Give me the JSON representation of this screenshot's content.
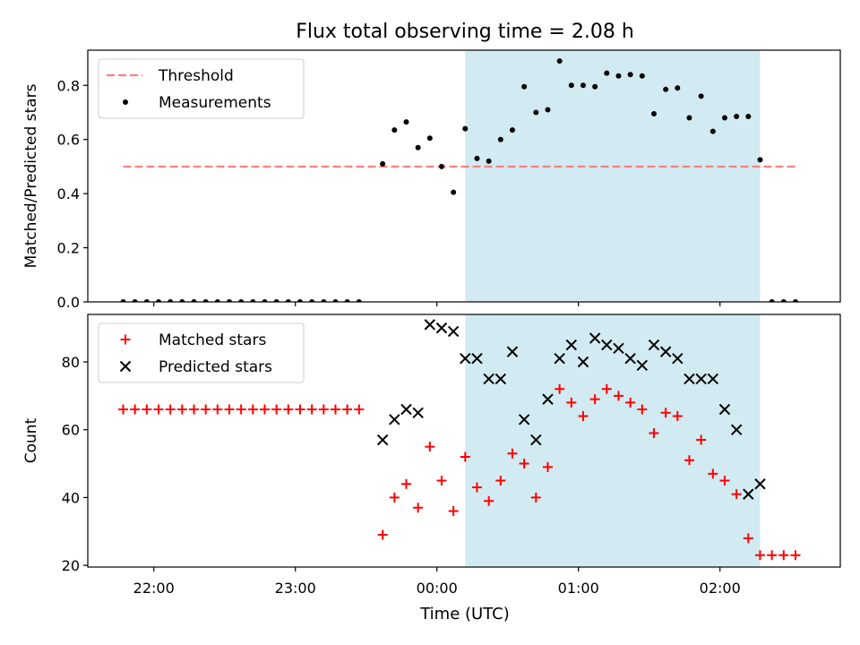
{
  "title": "Flux total observing time = 2.08 h",
  "xlabel": "Time (UTC)",
  "chart_data": [
    {
      "type": "scatter",
      "panel": "top",
      "ylabel": "Matched/Predicted stars",
      "xlim": [
        "21:32",
        "02:51"
      ],
      "ylim": [
        0,
        0.93
      ],
      "yticks": [
        0.0,
        0.2,
        0.4,
        0.6,
        0.8
      ],
      "ytick_labels": [
        "0.0",
        "0.2",
        "0.4",
        "0.6",
        "0.8"
      ],
      "shaded_interval": [
        "00:12",
        "02:17"
      ],
      "legend": {
        "placement": "upper-left",
        "entries": [
          "Threshold",
          "Measurements"
        ]
      },
      "threshold": {
        "name": "Threshold",
        "value": 0.5,
        "x_start": "21:47",
        "x_end": "02:32",
        "style": "dashed",
        "color": "#ff7f7f"
      },
      "series": [
        {
          "name": "Measurements",
          "marker": "dot",
          "color": "#000000",
          "points": [
            [
              "21:47",
              0.0
            ],
            [
              "21:52",
              0.0
            ],
            [
              "21:57",
              0.0
            ],
            [
              "22:02",
              0.0
            ],
            [
              "22:07",
              0.0
            ],
            [
              "22:12",
              0.0
            ],
            [
              "22:17",
              0.0
            ],
            [
              "22:22",
              0.0
            ],
            [
              "22:27",
              0.0
            ],
            [
              "22:32",
              0.0
            ],
            [
              "22:37",
              0.0
            ],
            [
              "22:42",
              0.0
            ],
            [
              "22:47",
              0.0
            ],
            [
              "22:52",
              0.0
            ],
            [
              "22:57",
              0.0
            ],
            [
              "23:02",
              0.0
            ],
            [
              "23:07",
              0.0
            ],
            [
              "23:12",
              0.0
            ],
            [
              "23:17",
              0.0
            ],
            [
              "23:22",
              0.0
            ],
            [
              "23:27",
              0.0
            ],
            [
              "23:37",
              0.51
            ],
            [
              "23:42",
              0.635
            ],
            [
              "23:47",
              0.665
            ],
            [
              "23:52",
              0.57
            ],
            [
              "23:57",
              0.605
            ],
            [
              "00:02",
              0.5
            ],
            [
              "00:07",
              0.405
            ],
            [
              "00:12",
              0.64
            ],
            [
              "00:17",
              0.53
            ],
            [
              "00:22",
              0.52
            ],
            [
              "00:27",
              0.6
            ],
            [
              "00:32",
              0.635
            ],
            [
              "00:37",
              0.795
            ],
            [
              "00:42",
              0.7
            ],
            [
              "00:47",
              0.71
            ],
            [
              "00:52",
              0.89
            ],
            [
              "00:57",
              0.8
            ],
            [
              "01:02",
              0.8
            ],
            [
              "01:07",
              0.795
            ],
            [
              "01:12",
              0.845
            ],
            [
              "01:17",
              0.835
            ],
            [
              "01:22",
              0.84
            ],
            [
              "01:27",
              0.835
            ],
            [
              "01:32",
              0.695
            ],
            [
              "01:37",
              0.785
            ],
            [
              "01:42",
              0.79
            ],
            [
              "01:47",
              0.68
            ],
            [
              "01:52",
              0.76
            ],
            [
              "01:57",
              0.63
            ],
            [
              "02:02",
              0.68
            ],
            [
              "02:07",
              0.685
            ],
            [
              "02:12",
              0.685
            ],
            [
              "02:17",
              0.525
            ],
            [
              "02:22",
              0.0
            ],
            [
              "02:27",
              0.0
            ],
            [
              "02:32",
              0.0
            ]
          ]
        }
      ]
    },
    {
      "type": "scatter",
      "panel": "bottom",
      "ylabel": "Count",
      "xlabel": "Time (UTC)",
      "xlim": [
        "21:32",
        "02:51"
      ],
      "ylim": [
        19.5,
        94
      ],
      "yticks": [
        20,
        40,
        60,
        80
      ],
      "ytick_labels": [
        "20",
        "40",
        "60",
        "80"
      ],
      "xticks": [
        "22:00",
        "23:00",
        "00:00",
        "01:00",
        "02:00"
      ],
      "shaded_interval": [
        "00:12",
        "02:17"
      ],
      "legend": {
        "placement": "upper-left",
        "entries": [
          "Matched stars",
          "Predicted stars"
        ]
      },
      "series": [
        {
          "name": "Matched stars",
          "marker": "plus",
          "color": "#ff0000",
          "points": [
            [
              "21:47",
              66
            ],
            [
              "21:52",
              66
            ],
            [
              "21:57",
              66
            ],
            [
              "22:02",
              66
            ],
            [
              "22:07",
              66
            ],
            [
              "22:12",
              66
            ],
            [
              "22:17",
              66
            ],
            [
              "22:22",
              66
            ],
            [
              "22:27",
              66
            ],
            [
              "22:32",
              66
            ],
            [
              "22:37",
              66
            ],
            [
              "22:42",
              66
            ],
            [
              "22:47",
              66
            ],
            [
              "22:52",
              66
            ],
            [
              "22:57",
              66
            ],
            [
              "23:02",
              66
            ],
            [
              "23:07",
              66
            ],
            [
              "23:12",
              66
            ],
            [
              "23:17",
              66
            ],
            [
              "23:22",
              66
            ],
            [
              "23:27",
              66
            ],
            [
              "23:37",
              29
            ],
            [
              "23:42",
              40
            ],
            [
              "23:47",
              44
            ],
            [
              "23:52",
              37
            ],
            [
              "23:57",
              55
            ],
            [
              "00:02",
              45
            ],
            [
              "00:07",
              36
            ],
            [
              "00:12",
              52
            ],
            [
              "00:17",
              43
            ],
            [
              "00:22",
              39
            ],
            [
              "00:27",
              45
            ],
            [
              "00:32",
              53
            ],
            [
              "00:37",
              50
            ],
            [
              "00:42",
              40
            ],
            [
              "00:47",
              49
            ],
            [
              "00:52",
              72
            ],
            [
              "00:57",
              68
            ],
            [
              "01:02",
              64
            ],
            [
              "01:07",
              69
            ],
            [
              "01:12",
              72
            ],
            [
              "01:17",
              70
            ],
            [
              "01:22",
              68
            ],
            [
              "01:27",
              66
            ],
            [
              "01:32",
              59
            ],
            [
              "01:37",
              65
            ],
            [
              "01:42",
              64
            ],
            [
              "01:47",
              51
            ],
            [
              "01:52",
              57
            ],
            [
              "01:57",
              47
            ],
            [
              "02:02",
              45
            ],
            [
              "02:07",
              41
            ],
            [
              "02:12",
              28
            ],
            [
              "02:17",
              23
            ],
            [
              "02:22",
              23
            ],
            [
              "02:27",
              23
            ],
            [
              "02:32",
              23
            ]
          ]
        },
        {
          "name": "Predicted stars",
          "marker": "x",
          "color": "#000000",
          "points": [
            [
              "23:37",
              57
            ],
            [
              "23:42",
              63
            ],
            [
              "23:47",
              66
            ],
            [
              "23:52",
              65
            ],
            [
              "23:57",
              91
            ],
            [
              "00:02",
              90
            ],
            [
              "00:07",
              89
            ],
            [
              "00:12",
              81
            ],
            [
              "00:17",
              81
            ],
            [
              "00:22",
              75
            ],
            [
              "00:27",
              75
            ],
            [
              "00:32",
              83
            ],
            [
              "00:37",
              63
            ],
            [
              "00:42",
              57
            ],
            [
              "00:47",
              69
            ],
            [
              "00:52",
              81
            ],
            [
              "00:57",
              85
            ],
            [
              "01:02",
              80
            ],
            [
              "01:07",
              87
            ],
            [
              "01:12",
              85
            ],
            [
              "01:17",
              84
            ],
            [
              "01:22",
              81
            ],
            [
              "01:27",
              79
            ],
            [
              "01:32",
              85
            ],
            [
              "01:37",
              83
            ],
            [
              "01:42",
              81
            ],
            [
              "01:47",
              75
            ],
            [
              "01:52",
              75
            ],
            [
              "01:57",
              75
            ],
            [
              "02:02",
              66
            ],
            [
              "02:07",
              60
            ],
            [
              "02:12",
              41
            ],
            [
              "02:17",
              44
            ]
          ]
        }
      ]
    }
  ],
  "colors": {
    "shade": "#add8e6",
    "threshold": "#ff7f7f",
    "matched": "#ff0000",
    "predicted": "#000000",
    "measurements": "#000000"
  }
}
